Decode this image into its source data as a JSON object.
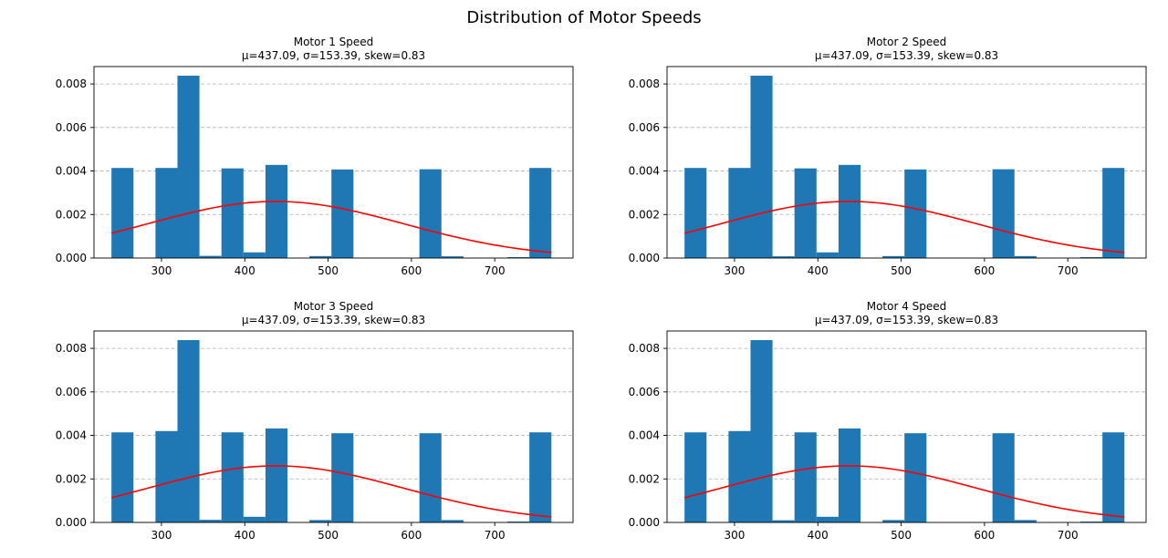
{
  "figure": {
    "title": "Distribution of Motor Speeds"
  },
  "colors": {
    "bar": "#1f77b4",
    "curve": "#ff0000",
    "grid": "#b0b0b0",
    "axis": "#000000"
  },
  "chart_data": [
    {
      "type": "bar",
      "title": "Motor 1 Speed",
      "subtitle": "μ=437.09, σ=153.39, skew=0.83",
      "xlim": [
        219,
        794
      ],
      "ylim": [
        0,
        0.0088
      ],
      "xticks": [
        300,
        400,
        500,
        600,
        700
      ],
      "yticks": [
        0.0,
        0.002,
        0.004,
        0.006,
        0.008
      ],
      "ytick_labels": [
        "0.000",
        "0.002",
        "0.004",
        "0.006",
        "0.008"
      ],
      "grid": "y-dashed",
      "bin_edges": [
        240,
        266.4,
        292.8,
        319.2,
        345.6,
        372,
        398.4,
        424.8,
        451.2,
        477.6,
        504,
        530.4,
        556.8,
        583.2,
        609.6,
        636,
        662.4,
        688.8,
        715.2,
        741.6,
        768
      ],
      "values": [
        0.00414,
        1e-05,
        0.00414,
        0.00838,
        0.0001,
        0.00412,
        0.00026,
        0.00428,
        0.0,
        9e-05,
        0.00407,
        0.0,
        0.0,
        0.0,
        0.00408,
        8e-05,
        0.0,
        0.0,
        4e-05,
        0.00414
      ],
      "curve": {
        "type": "normal",
        "mu": 437.09,
        "sigma": 153.39
      }
    },
    {
      "type": "bar",
      "title": "Motor 2 Speed",
      "subtitle": "μ=437.09, σ=153.39, skew=0.83",
      "xlim": [
        219,
        794
      ],
      "ylim": [
        0,
        0.0088
      ],
      "xticks": [
        300,
        400,
        500,
        600,
        700
      ],
      "yticks": [
        0.0,
        0.002,
        0.004,
        0.006,
        0.008
      ],
      "ytick_labels": [
        "0.000",
        "0.002",
        "0.004",
        "0.006",
        "0.008"
      ],
      "grid": "y-dashed",
      "bin_edges": [
        240,
        266.4,
        292.8,
        319.2,
        345.6,
        372,
        398.4,
        424.8,
        451.2,
        477.6,
        504,
        530.4,
        556.8,
        583.2,
        609.6,
        636,
        662.4,
        688.8,
        715.2,
        741.6,
        768
      ],
      "values": [
        0.00414,
        2e-05,
        0.00414,
        0.00838,
        8e-05,
        0.00412,
        0.00026,
        0.00428,
        0.0,
        9e-05,
        0.00407,
        0.0,
        0.0,
        0.0,
        0.00408,
        9e-05,
        0.0,
        0.0,
        4e-05,
        0.00414
      ],
      "curve": {
        "type": "normal",
        "mu": 437.09,
        "sigma": 153.39
      }
    },
    {
      "type": "bar",
      "title": "Motor 3 Speed",
      "subtitle": "μ=437.09, σ=153.39, skew=0.83",
      "xlim": [
        219,
        794
      ],
      "ylim": [
        0,
        0.0088
      ],
      "xticks": [
        300,
        400,
        500,
        600,
        700
      ],
      "yticks": [
        0.0,
        0.002,
        0.004,
        0.006,
        0.008
      ],
      "ytick_labels": [
        "0.000",
        "0.002",
        "0.004",
        "0.006",
        "0.008"
      ],
      "grid": "y-dashed",
      "bin_edges": [
        240,
        266.4,
        292.8,
        319.2,
        345.6,
        372,
        398.4,
        424.8,
        451.2,
        477.6,
        504,
        530.4,
        556.8,
        583.2,
        609.6,
        636,
        662.4,
        688.8,
        715.2,
        741.6,
        768
      ],
      "values": [
        0.00414,
        2e-05,
        0.0042,
        0.00838,
        0.00012,
        0.00414,
        0.00026,
        0.00432,
        0.0,
        0.00011,
        0.0041,
        0.0,
        0.0,
        0.0,
        0.0041,
        0.00011,
        0.0,
        0.0,
        4e-05,
        0.00414
      ],
      "curve": {
        "type": "normal",
        "mu": 437.09,
        "sigma": 153.39
      }
    },
    {
      "type": "bar",
      "title": "Motor 4 Speed",
      "subtitle": "μ=437.09, σ=153.39, skew=0.83",
      "xlim": [
        219,
        794
      ],
      "ylim": [
        0,
        0.0088
      ],
      "xticks": [
        300,
        400,
        500,
        600,
        700
      ],
      "yticks": [
        0.0,
        0.002,
        0.004,
        0.006,
        0.008
      ],
      "ytick_labels": [
        "0.000",
        "0.002",
        "0.004",
        "0.006",
        "0.008"
      ],
      "grid": "y-dashed",
      "bin_edges": [
        240,
        266.4,
        292.8,
        319.2,
        345.6,
        372,
        398.4,
        424.8,
        451.2,
        477.6,
        504,
        530.4,
        556.8,
        583.2,
        609.6,
        636,
        662.4,
        688.8,
        715.2,
        741.6,
        768
      ],
      "values": [
        0.00414,
        2e-05,
        0.0042,
        0.00838,
        0.0001,
        0.00414,
        0.00026,
        0.00432,
        0.0,
        0.00011,
        0.0041,
        0.0,
        0.0,
        0.0,
        0.0041,
        0.00011,
        0.0,
        0.0,
        4e-05,
        0.00414
      ],
      "curve": {
        "type": "normal",
        "mu": 437.09,
        "sigma": 153.39
      }
    }
  ]
}
